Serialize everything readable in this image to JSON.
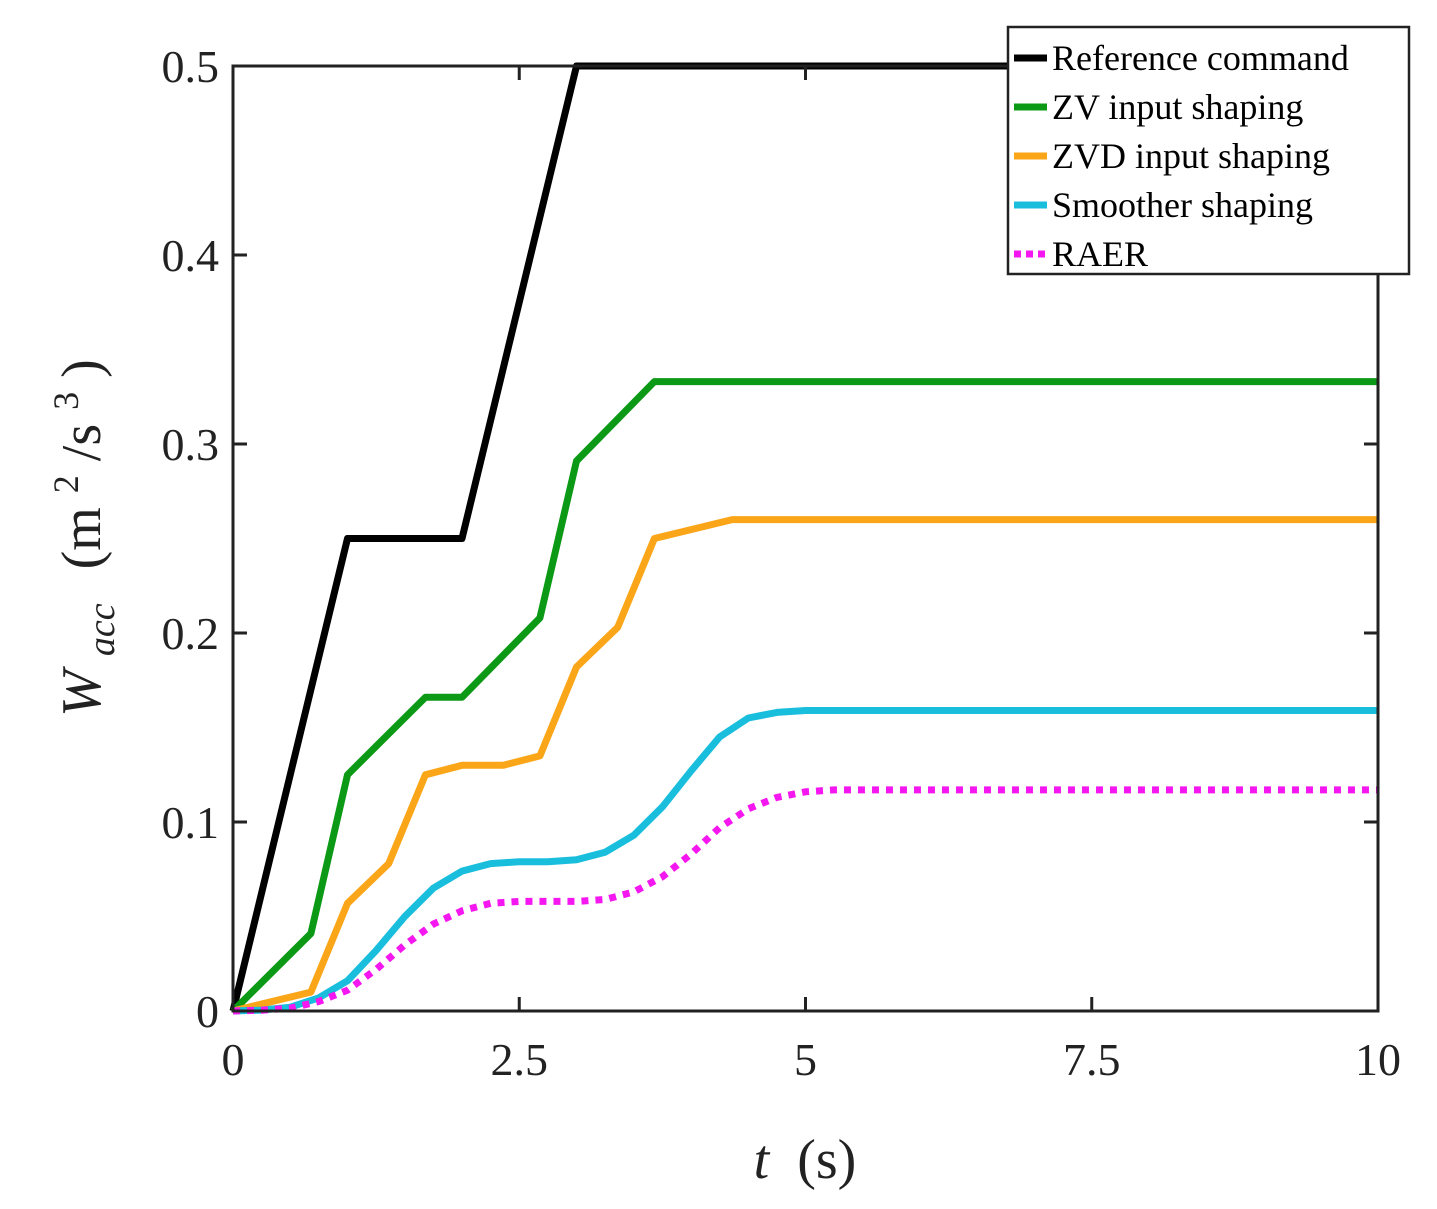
{
  "chart_data": {
    "type": "line",
    "title": "",
    "xlabel": {
      "var": "t",
      "unit": "(s)"
    },
    "ylabel": {
      "var": "W",
      "sub": "acc",
      "unit_open": "(m",
      "unit_sup1": "2",
      "unit_mid": "/s",
      "unit_sup2": "3",
      "unit_close": ")"
    },
    "xlim": [
      0,
      10
    ],
    "ylim": [
      0,
      0.5
    ],
    "xticks": [
      0,
      2.5,
      5,
      7.5,
      10
    ],
    "xtick_labels": [
      "0",
      "2.5",
      "5",
      "7.5",
      "10"
    ],
    "yticks": [
      0,
      0.1,
      0.2,
      0.3,
      0.4,
      0.5
    ],
    "ytick_labels": [
      "0",
      "0.1",
      "0.2",
      "0.3",
      "0.4",
      "0.5"
    ],
    "grid": false,
    "legend_position": "top-right",
    "series": [
      {
        "name": "Reference command",
        "color": "#000000",
        "dash": "solid",
        "x": [
          0,
          1,
          2,
          3,
          10
        ],
        "y": [
          0,
          0.25,
          0.25,
          0.5,
          0.5
        ]
      },
      {
        "name": "ZV input shaping",
        "color": "#0c9a16",
        "dash": "solid",
        "x": [
          0,
          0.68,
          1,
          1.68,
          2,
          2.68,
          3,
          3.68,
          10
        ],
        "y": [
          0,
          0.041,
          0.125,
          0.166,
          0.166,
          0.208,
          0.291,
          0.333,
          0.333
        ]
      },
      {
        "name": "ZVD input shaping",
        "color": "#fba618",
        "dash": "solid",
        "x": [
          0,
          0.68,
          1,
          1.36,
          1.68,
          2,
          2.36,
          2.68,
          3,
          3.36,
          3.68,
          4.36,
          10
        ],
        "y": [
          0,
          0.01,
          0.057,
          0.078,
          0.125,
          0.13,
          0.13,
          0.135,
          0.182,
          0.203,
          0.25,
          0.26,
          0.26
        ]
      },
      {
        "name": "Smoother shaping",
        "color": "#19bedd",
        "dash": "solid",
        "x": [
          0,
          0.25,
          0.5,
          0.75,
          1,
          1.25,
          1.5,
          1.75,
          2,
          2.25,
          2.5,
          2.75,
          3,
          3.25,
          3.5,
          3.75,
          4,
          4.25,
          4.5,
          4.75,
          5,
          10
        ],
        "y": [
          0,
          0.0005,
          0.002,
          0.007,
          0.016,
          0.032,
          0.05,
          0.065,
          0.074,
          0.078,
          0.079,
          0.079,
          0.08,
          0.084,
          0.093,
          0.108,
          0.127,
          0.145,
          0.155,
          0.158,
          0.159,
          0.159
        ]
      },
      {
        "name": "RAER",
        "color": "#f517f0",
        "dash": "dotted",
        "x": [
          0,
          0.25,
          0.5,
          0.75,
          1,
          1.25,
          1.5,
          1.75,
          2,
          2.25,
          2.5,
          2.75,
          3,
          3.25,
          3.5,
          3.75,
          4,
          4.25,
          4.5,
          4.75,
          5,
          5.25,
          10
        ],
        "y": [
          0,
          0.0004,
          0.0015,
          0.005,
          0.011,
          0.022,
          0.035,
          0.046,
          0.053,
          0.057,
          0.058,
          0.058,
          0.058,
          0.059,
          0.063,
          0.071,
          0.083,
          0.097,
          0.107,
          0.113,
          0.116,
          0.117,
          0.117
        ]
      }
    ]
  }
}
